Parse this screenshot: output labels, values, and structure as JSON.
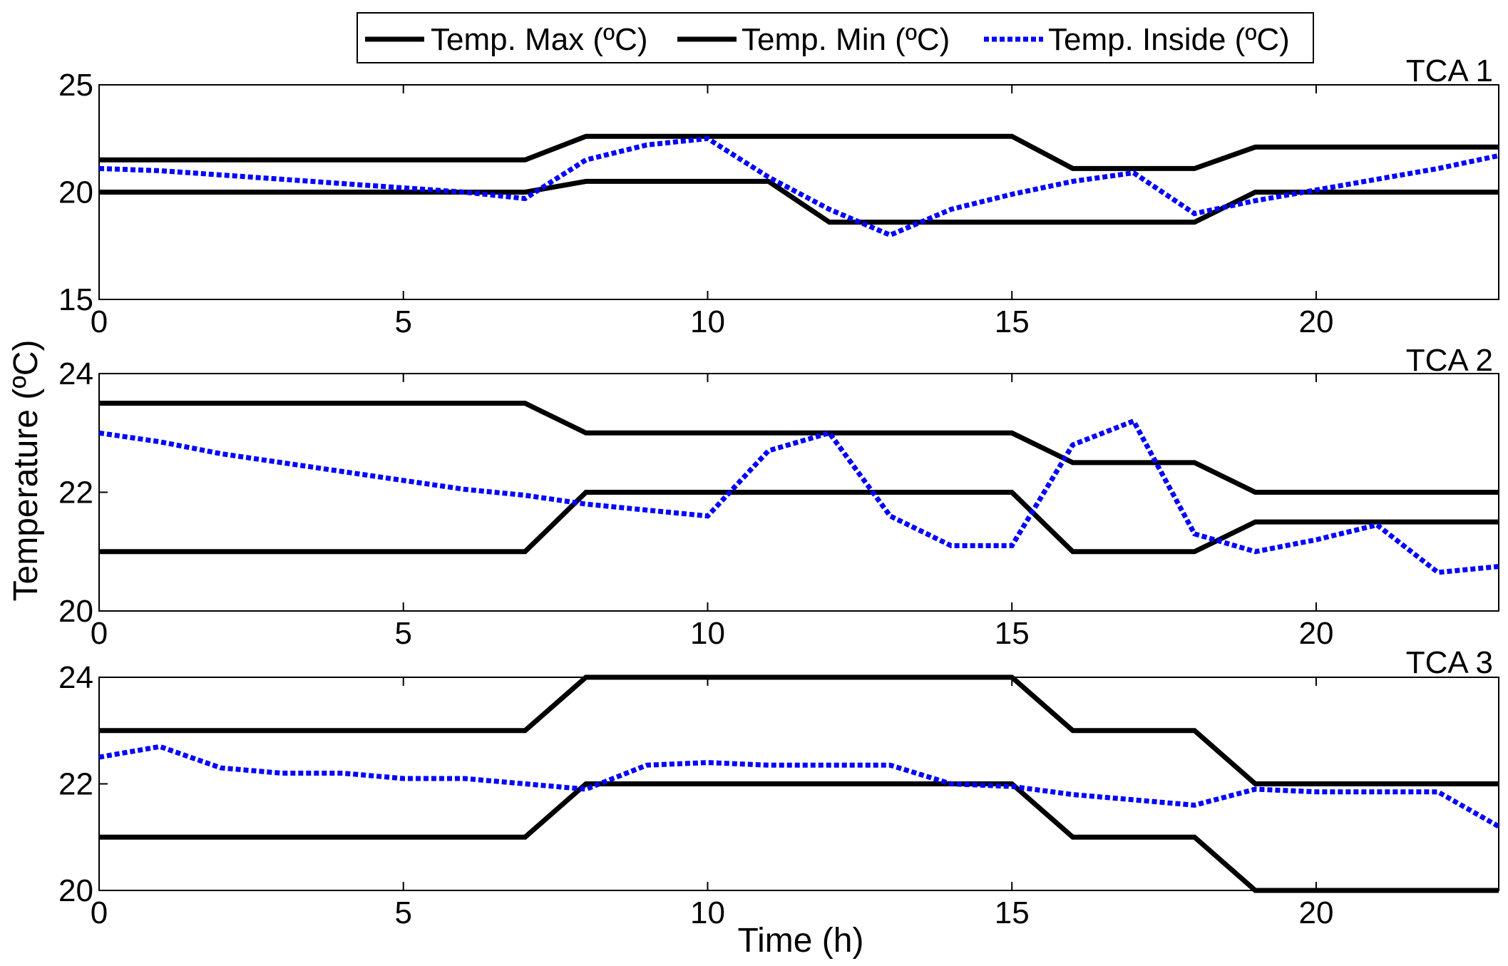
{
  "chart_data": {
    "type": "line",
    "legend": {
      "placement": "top-center",
      "entries": [
        {
          "label": "Temp. Max (ºC)",
          "color": "#000000",
          "style": "solid"
        },
        {
          "label": "Temp. Min (ºC)",
          "color": "#000000",
          "style": "solid"
        },
        {
          "label": "Temp. Inside (ºC)",
          "color": "#0000ff",
          "style": "dotted"
        }
      ]
    },
    "xlabel": "Time (h)",
    "ylabel": "Temperature (ºC)",
    "xlim": [
      0,
      23
    ],
    "xticks": [
      0,
      5,
      10,
      15,
      20
    ],
    "panels": [
      {
        "title": "TCA 1",
        "ylim": [
          15,
          25
        ],
        "yticks": [
          15,
          20,
          25
        ],
        "x": [
          0,
          1,
          2,
          3,
          4,
          5,
          6,
          7,
          8,
          9,
          10,
          11,
          12,
          13,
          14,
          15,
          16,
          17,
          18,
          19,
          20,
          21,
          22,
          23
        ],
        "series": [
          {
            "name": "Temp. Max (ºC)",
            "values": [
              21.5,
              21.5,
              21.5,
              21.5,
              21.5,
              21.5,
              21.5,
              21.5,
              22.6,
              22.6,
              22.6,
              22.6,
              22.6,
              22.6,
              22.6,
              22.6,
              21.1,
              21.1,
              21.1,
              22.1,
              22.1,
              22.1,
              22.1,
              22.1
            ]
          },
          {
            "name": "Temp. Min (ºC)",
            "values": [
              20.0,
              20.0,
              20.0,
              20.0,
              20.0,
              20.0,
              20.0,
              20.0,
              20.5,
              20.5,
              20.5,
              20.5,
              18.6,
              18.6,
              18.6,
              18.6,
              18.6,
              18.6,
              18.6,
              20.0,
              20.0,
              20.0,
              20.0,
              20.0
            ]
          },
          {
            "name": "Temp. Inside (ºC)",
            "values": [
              21.1,
              21.0,
              20.8,
              20.6,
              20.4,
              20.2,
              20.0,
              19.7,
              21.5,
              22.2,
              22.5,
              20.7,
              19.2,
              18.0,
              19.2,
              19.9,
              20.5,
              20.9,
              19.0,
              19.6,
              20.1,
              20.6,
              21.1,
              21.7
            ]
          }
        ]
      },
      {
        "title": "TCA 2",
        "ylim": [
          20,
          24
        ],
        "yticks": [
          20,
          22,
          24
        ],
        "x": [
          0,
          1,
          2,
          3,
          4,
          5,
          6,
          7,
          8,
          9,
          10,
          11,
          12,
          13,
          14,
          15,
          16,
          17,
          18,
          19,
          20,
          21,
          22,
          23
        ],
        "series": [
          {
            "name": "Temp. Max (ºC)",
            "values": [
              23.5,
              23.5,
              23.5,
              23.5,
              23.5,
              23.5,
              23.5,
              23.5,
              23.0,
              23.0,
              23.0,
              23.0,
              23.0,
              23.0,
              23.0,
              23.0,
              22.5,
              22.5,
              22.5,
              22.0,
              22.0,
              22.0,
              22.0,
              22.0
            ]
          },
          {
            "name": "Temp. Min (ºC)",
            "values": [
              21.0,
              21.0,
              21.0,
              21.0,
              21.0,
              21.0,
              21.0,
              21.0,
              22.0,
              22.0,
              22.0,
              22.0,
              22.0,
              22.0,
              22.0,
              22.0,
              21.0,
              21.0,
              21.0,
              21.5,
              21.5,
              21.5,
              21.5,
              21.5
            ]
          },
          {
            "name": "Temp. Inside (ºC)",
            "values": [
              23.0,
              22.85,
              22.65,
              22.5,
              22.35,
              22.2,
              22.05,
              21.95,
              21.8,
              21.7,
              21.6,
              22.7,
              23.0,
              21.6,
              21.1,
              21.1,
              22.8,
              23.2,
              21.3,
              21.0,
              21.2,
              21.45,
              20.65,
              20.75
            ]
          }
        ]
      },
      {
        "title": "TCA 3",
        "ylim": [
          20,
          24
        ],
        "yticks": [
          20,
          22,
          24
        ],
        "x": [
          0,
          1,
          2,
          3,
          4,
          5,
          6,
          7,
          8,
          9,
          10,
          11,
          12,
          13,
          14,
          15,
          16,
          17,
          18,
          19,
          20,
          21,
          22,
          23
        ],
        "series": [
          {
            "name": "Temp. Max (ºC)",
            "values": [
              23.0,
              23.0,
              23.0,
              23.0,
              23.0,
              23.0,
              23.0,
              23.0,
              24.0,
              24.0,
              24.0,
              24.0,
              24.0,
              24.0,
              24.0,
              24.0,
              23.0,
              23.0,
              23.0,
              22.0,
              22.0,
              22.0,
              22.0,
              22.0
            ]
          },
          {
            "name": "Temp. Min (ºC)",
            "values": [
              21.0,
              21.0,
              21.0,
              21.0,
              21.0,
              21.0,
              21.0,
              21.0,
              22.0,
              22.0,
              22.0,
              22.0,
              22.0,
              22.0,
              22.0,
              22.0,
              21.0,
              21.0,
              21.0,
              20.0,
              20.0,
              20.0,
              20.0,
              20.0
            ]
          },
          {
            "name": "Temp. Inside (ºC)",
            "values": [
              22.5,
              22.7,
              22.3,
              22.2,
              22.2,
              22.1,
              22.1,
              22.0,
              21.9,
              22.35,
              22.4,
              22.35,
              22.35,
              22.35,
              22.0,
              21.95,
              21.8,
              21.7,
              21.6,
              21.9,
              21.85,
              21.85,
              21.85,
              21.2
            ]
          }
        ]
      }
    ]
  }
}
